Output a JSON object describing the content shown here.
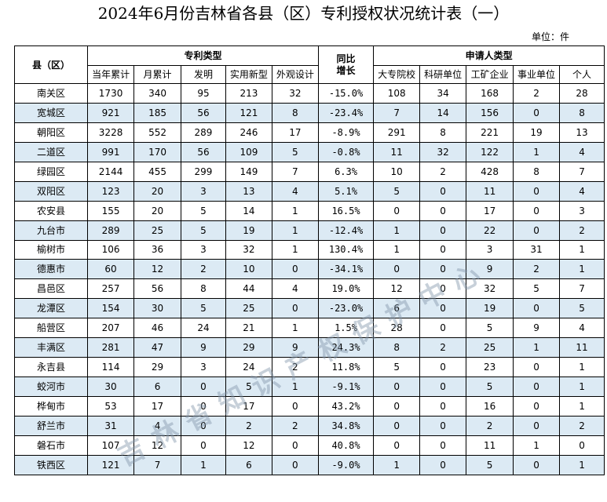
{
  "title": "2024年6月份吉林省各县（区）专利授权状况统计表（一）",
  "unit": "单位：件",
  "table": {
    "col_region": "县（区）",
    "group_patent": "专利类型",
    "col_yoy": "同比增长",
    "group_applicant": "申请人类型",
    "sub_patent": [
      "当年累计",
      "月累计",
      "发明",
      "实用新型",
      "外观设计"
    ],
    "sub_applicant": [
      "大专院校",
      "科研单位",
      "工矿企业",
      "事业单位",
      "个人"
    ],
    "rows": [
      [
        "南关区",
        "1730",
        "340",
        "95",
        "213",
        "32",
        "-15.0%",
        "108",
        "34",
        "168",
        "2",
        "28"
      ],
      [
        "宽城区",
        "921",
        "185",
        "56",
        "121",
        "8",
        "-23.4%",
        "7",
        "14",
        "156",
        "0",
        "8"
      ],
      [
        "朝阳区",
        "3228",
        "552",
        "289",
        "246",
        "17",
        "-8.9%",
        "291",
        "8",
        "221",
        "19",
        "13"
      ],
      [
        "二道区",
        "991",
        "170",
        "56",
        "109",
        "5",
        "-0.8%",
        "11",
        "32",
        "122",
        "1",
        "4"
      ],
      [
        "绿园区",
        "2144",
        "455",
        "299",
        "149",
        "7",
        "6.3%",
        "10",
        "2",
        "428",
        "8",
        "7"
      ],
      [
        "双阳区",
        "123",
        "20",
        "3",
        "13",
        "4",
        "5.1%",
        "5",
        "0",
        "11",
        "0",
        "4"
      ],
      [
        "农安县",
        "155",
        "20",
        "5",
        "14",
        "1",
        "16.5%",
        "0",
        "0",
        "17",
        "0",
        "3"
      ],
      [
        "九台市",
        "289",
        "25",
        "5",
        "19",
        "1",
        "-12.4%",
        "1",
        "0",
        "22",
        "0",
        "2"
      ],
      [
        "榆树市",
        "106",
        "36",
        "3",
        "32",
        "1",
        "130.4%",
        "1",
        "0",
        "3",
        "31",
        "1"
      ],
      [
        "德惠市",
        "60",
        "12",
        "2",
        "10",
        "0",
        "-34.1%",
        "0",
        "0",
        "9",
        "2",
        "1"
      ],
      [
        "昌邑区",
        "257",
        "56",
        "8",
        "44",
        "4",
        "19.0%",
        "12",
        "0",
        "32",
        "5",
        "7"
      ],
      [
        "龙潭区",
        "154",
        "30",
        "5",
        "25",
        "0",
        "-23.0%",
        "6",
        "0",
        "19",
        "0",
        "5"
      ],
      [
        "船营区",
        "207",
        "46",
        "24",
        "21",
        "1",
        "1.5%",
        "28",
        "0",
        "5",
        "9",
        "4"
      ],
      [
        "丰满区",
        "281",
        "47",
        "9",
        "29",
        "9",
        "24.3%",
        "8",
        "2",
        "25",
        "1",
        "11"
      ],
      [
        "永吉县",
        "114",
        "29",
        "3",
        "24",
        "2",
        "11.8%",
        "5",
        "0",
        "23",
        "0",
        "1"
      ],
      [
        "蛟河市",
        "30",
        "6",
        "0",
        "5",
        "1",
        "-9.1%",
        "0",
        "0",
        "5",
        "0",
        "1"
      ],
      [
        "桦甸市",
        "53",
        "17",
        "0",
        "17",
        "0",
        "43.2%",
        "0",
        "0",
        "16",
        "0",
        "1"
      ],
      [
        "舒兰市",
        "31",
        "4",
        "0",
        "2",
        "2",
        "34.8%",
        "0",
        "0",
        "2",
        "0",
        "2"
      ],
      [
        "磐石市",
        "107",
        "12",
        "0",
        "12",
        "0",
        "40.8%",
        "0",
        "0",
        "11",
        "1",
        "0"
      ],
      [
        "铁西区",
        "121",
        "7",
        "1",
        "6",
        "0",
        "-9.0%",
        "1",
        "0",
        "5",
        "0",
        "1"
      ]
    ]
  },
  "watermark": "吉林省知识产权保护中心",
  "colors": {
    "stripe": "#dceaf4",
    "watermark": "#8296aa"
  }
}
